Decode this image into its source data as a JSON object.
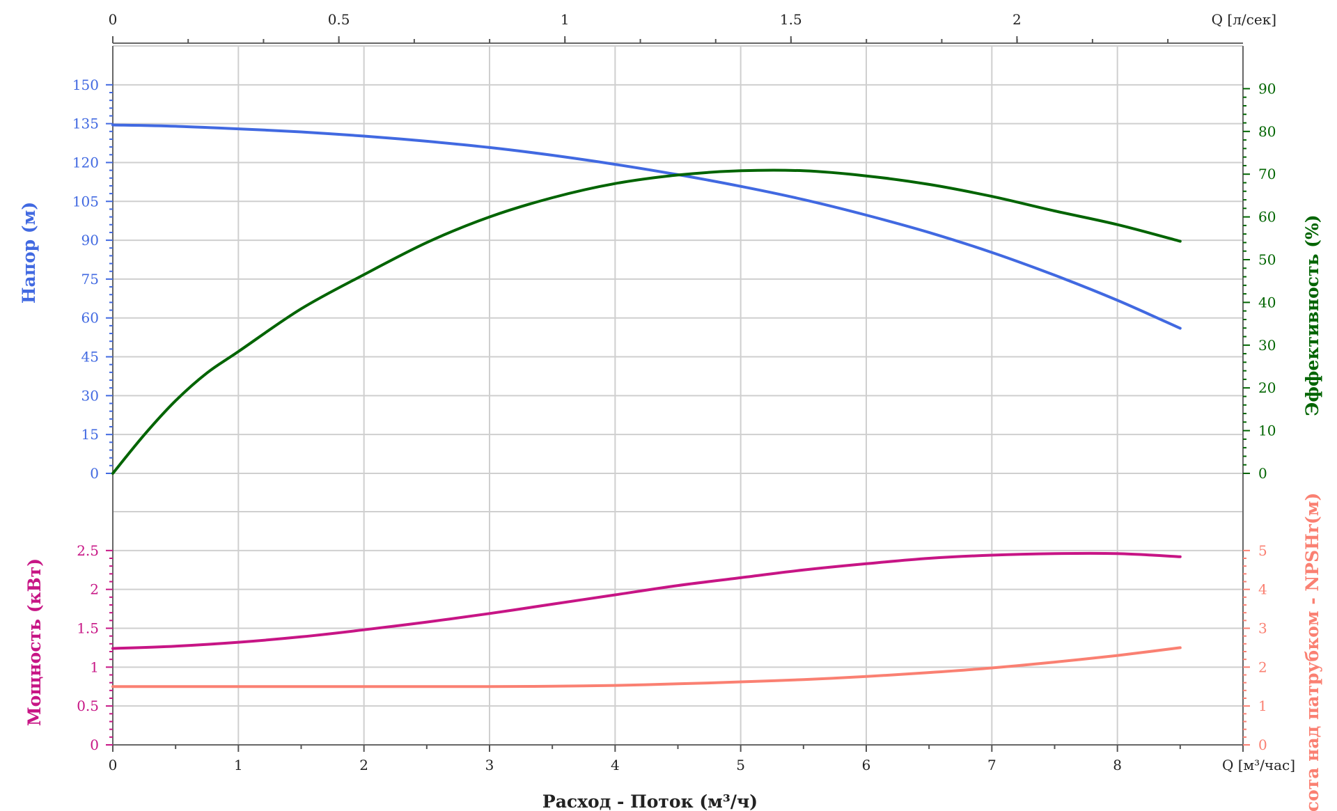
{
  "colors": {
    "head": "#4169E1",
    "efficiency": "#006400",
    "power": "#C71585",
    "npsh": "#FA8072",
    "grid": "#cfcfcf",
    "axis": "#666666",
    "text": "#222222"
  },
  "labels": {
    "top_unit": "Q [л/сек]",
    "bottom_unit": "Q [м³/час]",
    "xlabel": "Расход - Поток (м³/ч)",
    "head_title": "Напор (м)",
    "efficiency_title": "Эффективность (%)",
    "power_title": "Мощность (кВт)",
    "npsh_title": "Высота над патрубком - NPSHr(м)"
  },
  "chart_data": [
    {
      "type": "line",
      "panel": "upper",
      "x_axis": {
        "label": "Q [м³/час]",
        "range": [
          0,
          9
        ],
        "ticks": [
          0,
          1,
          2,
          3,
          4,
          5,
          6,
          7,
          8
        ]
      },
      "x_axis_top": {
        "label": "Q [л/сек]",
        "range": [
          0,
          2.5
        ],
        "ticks": [
          0,
          0.5,
          1,
          1.5,
          2
        ],
        "tick_labels": [
          "0",
          "0.5",
          "1",
          "1.5",
          "2"
        ]
      },
      "y_axis_left": {
        "label": "Напор (м)",
        "range": [
          0,
          165
        ],
        "ticks": [
          0,
          15,
          30,
          45,
          60,
          75,
          90,
          105,
          120,
          135,
          150
        ]
      },
      "y_axis_right": {
        "label": "Эффективность (%)",
        "range": [
          0,
          100
        ],
        "ticks": [
          0,
          10,
          20,
          30,
          40,
          50,
          60,
          70,
          80,
          90
        ]
      },
      "grid": true,
      "series": [
        {
          "name": "Напор (м)",
          "axis": "left",
          "x": [
            0,
            0.5,
            1,
            1.5,
            2,
            2.5,
            3,
            3.5,
            4,
            4.5,
            5,
            5.5,
            6,
            6.5,
            7,
            7.5,
            8,
            8.5
          ],
          "y": [
            134.5,
            134,
            133,
            131.8,
            130.2,
            128.2,
            125.8,
            122.8,
            119.3,
            115.3,
            110.8,
            105.7,
            99.7,
            93,
            85.3,
            76.5,
            66.8,
            56
          ]
        },
        {
          "name": "Эффективность (%)",
          "axis": "right",
          "x": [
            0,
            0.25,
            0.5,
            0.75,
            1,
            1.5,
            2,
            2.5,
            3,
            3.5,
            4,
            4.5,
            5,
            5.5,
            6,
            6.5,
            7,
            7.5,
            8,
            8.5
          ],
          "y": [
            0,
            9,
            17,
            23.5,
            28.5,
            38.5,
            46.5,
            54,
            60,
            64.5,
            67.8,
            69.8,
            70.8,
            70.8,
            69.6,
            67.6,
            64.8,
            61.4,
            58.2,
            54.3
          ]
        }
      ]
    },
    {
      "type": "line",
      "panel": "lower",
      "x_axis": {
        "label": "Расход - Поток (м³/ч)",
        "range": [
          0,
          9
        ],
        "ticks": [
          0,
          1,
          2,
          3,
          4,
          5,
          6,
          7,
          8
        ]
      },
      "y_axis_left": {
        "label": "Мощность (кВт)",
        "range": [
          0,
          3
        ],
        "ticks": [
          0,
          0.5,
          1,
          1.5,
          2,
          2.5
        ],
        "tick_labels": [
          "0",
          "0.5",
          "1",
          "1.5",
          "2",
          "2.5"
        ]
      },
      "y_axis_right": {
        "label": "Высота над патрубком - NPSHr(м)",
        "range": [
          0,
          6
        ],
        "ticks": [
          0,
          1,
          2,
          3,
          4,
          5
        ]
      },
      "grid": true,
      "series": [
        {
          "name": "Мощность (кВт)",
          "axis": "left",
          "x": [
            0,
            0.5,
            1,
            1.5,
            2,
            2.5,
            3,
            3.5,
            4,
            4.5,
            5,
            5.5,
            6,
            6.5,
            7,
            7.5,
            8,
            8.5
          ],
          "y": [
            1.24,
            1.27,
            1.32,
            1.39,
            1.48,
            1.58,
            1.69,
            1.81,
            1.93,
            2.05,
            2.15,
            2.25,
            2.33,
            2.4,
            2.44,
            2.46,
            2.46,
            2.42
          ]
        },
        {
          "name": "Высота над патрубком - NPSHr(м)",
          "axis": "right",
          "x": [
            0,
            1,
            2,
            3,
            3.5,
            4,
            4.5,
            5,
            5.5,
            6,
            6.5,
            7,
            7.5,
            8,
            8.5
          ],
          "y": [
            1.5,
            1.5,
            1.5,
            1.5,
            1.51,
            1.53,
            1.57,
            1.62,
            1.68,
            1.76,
            1.86,
            1.98,
            2.13,
            2.3,
            2.5
          ]
        }
      ]
    }
  ]
}
